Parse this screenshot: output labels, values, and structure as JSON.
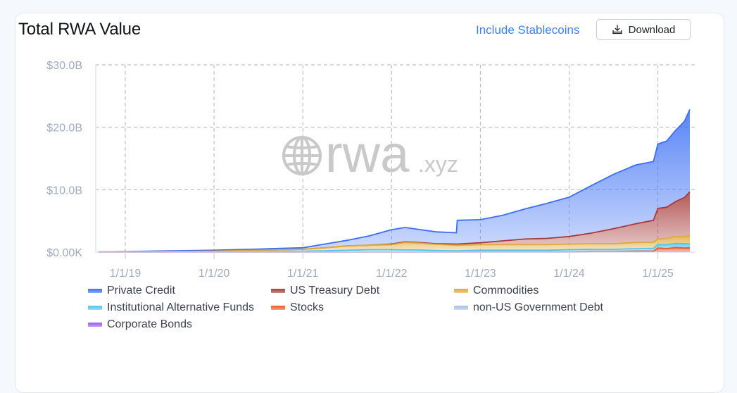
{
  "card": {
    "title": "Total RWA Value",
    "include_stablecoins_label": "Include Stablecoins",
    "download_label": "Download",
    "download_icon": "download-icon"
  },
  "watermark": {
    "main": "rwa",
    "suffix": ".xyz",
    "icon": "globe-icon"
  },
  "legend": [
    {
      "label": "Private Credit",
      "color": "#3b6ff5"
    },
    {
      "label": "US Treasury Debt",
      "color": "#a83a3a"
    },
    {
      "label": "Commodities",
      "color": "#e0a93a"
    },
    {
      "label": "Institutional Alternative Funds",
      "color": "#4fc6e8"
    },
    {
      "label": "Stocks",
      "color": "#f05a28"
    },
    {
      "label": "non-US Government Debt",
      "color": "#a9c0e8"
    },
    {
      "label": "Corporate Bonds",
      "color": "#9b5cf0"
    }
  ],
  "chart_data": {
    "type": "area",
    "stacked": true,
    "title": "Total RWA Value",
    "xlabel": "",
    "ylabel": "",
    "ylim": [
      0,
      30
    ],
    "y_unit": "USD billions",
    "y_ticks": [
      "$0.00K",
      "$10.0B",
      "$20.0B",
      "$30.0B"
    ],
    "x_ticks": [
      "1/1/19",
      "1/1/20",
      "1/1/21",
      "1/1/22",
      "1/1/23",
      "1/1/24",
      "1/1/25"
    ],
    "grid": true,
    "legend_position": "bottom",
    "x": [
      2018.7,
      2019.0,
      2019.5,
      2020.0,
      2020.5,
      2021.0,
      2021.25,
      2021.5,
      2021.75,
      2022.0,
      2022.15,
      2022.3,
      2022.5,
      2022.73,
      2022.74,
      2023.0,
      2023.25,
      2023.5,
      2023.75,
      2024.0,
      2024.25,
      2024.5,
      2024.75,
      2024.95,
      2025.0,
      2025.1,
      2025.2,
      2025.3,
      2025.36
    ],
    "series": [
      {
        "name": "Corporate Bonds",
        "values": [
          0,
          0,
          0,
          0,
          0,
          0,
          0,
          0,
          0,
          0,
          0,
          0,
          0,
          0,
          0,
          0,
          0,
          0,
          0,
          0,
          0.05,
          0.05,
          0.05,
          0.05,
          0.05,
          0.05,
          0.05,
          0.05,
          0.05
        ]
      },
      {
        "name": "Stocks",
        "values": [
          0,
          0,
          0,
          0,
          0,
          0,
          0,
          0,
          0,
          0,
          0,
          0,
          0,
          0,
          0,
          0.05,
          0.05,
          0.05,
          0.05,
          0.05,
          0.05,
          0.05,
          0.1,
          0.1,
          0.6,
          0.5,
          0.7,
          0.6,
          0.65
        ]
      },
      {
        "name": "non-US Government Debt",
        "values": [
          0,
          0,
          0,
          0,
          0,
          0,
          0,
          0,
          0.05,
          0.05,
          0.05,
          0.05,
          0.05,
          0.05,
          0.05,
          0.05,
          0.05,
          0.05,
          0.05,
          0.05,
          0.05,
          0.05,
          0.05,
          0.05,
          0.05,
          0.05,
          0.05,
          0.05,
          0.05
        ]
      },
      {
        "name": "Institutional Alternative Funds",
        "values": [
          0.05,
          0.05,
          0.05,
          0.05,
          0.1,
          0.15,
          0.2,
          0.3,
          0.35,
          0.35,
          0.3,
          0.3,
          0.2,
          0.15,
          0.15,
          0.2,
          0.2,
          0.2,
          0.2,
          0.3,
          0.3,
          0.3,
          0.35,
          0.4,
          0.5,
          0.6,
          0.6,
          0.65,
          0.6
        ]
      },
      {
        "name": "Commodities",
        "values": [
          0,
          0,
          0.05,
          0.1,
          0.2,
          0.3,
          0.5,
          0.7,
          0.7,
          0.8,
          1.2,
          1.1,
          1.0,
          0.9,
          0.9,
          0.9,
          0.9,
          0.9,
          0.9,
          0.9,
          0.9,
          0.9,
          1.0,
          1.0,
          0.9,
          1.0,
          1.1,
          1.1,
          1.3
        ]
      },
      {
        "name": "US Treasury Debt",
        "values": [
          0,
          0,
          0,
          0,
          0,
          0,
          0,
          0,
          0,
          0.1,
          0.1,
          0.1,
          0.1,
          0.2,
          0.2,
          0.3,
          0.6,
          0.9,
          1.0,
          1.2,
          1.7,
          2.4,
          3.0,
          3.5,
          4.9,
          5.0,
          5.6,
          6.3,
          7.0
        ]
      },
      {
        "name": "Private Credit",
        "values": [
          0,
          0.05,
          0.1,
          0.15,
          0.2,
          0.25,
          0.6,
          0.9,
          1.5,
          2.3,
          2.3,
          2.1,
          1.9,
          1.8,
          3.8,
          3.7,
          4.1,
          4.8,
          5.6,
          6.3,
          7.6,
          8.7,
          9.4,
          9.4,
          10.3,
          10.6,
          11.4,
          12.2,
          13.2
        ]
      }
    ]
  }
}
